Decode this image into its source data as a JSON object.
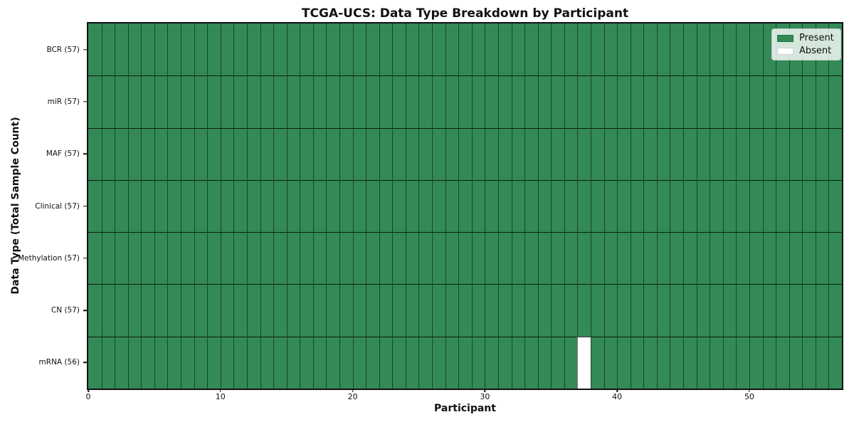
{
  "chart_data": {
    "type": "heatmap",
    "title": "TCGA-UCS: Data Type Breakdown by Participant",
    "xlabel": "Participant",
    "ylabel": "Data Type (Total Sample Count)",
    "n_participants": 57,
    "xlim": [
      0,
      57
    ],
    "x_ticks": [
      0,
      10,
      20,
      30,
      40,
      50
    ],
    "rows": [
      {
        "label": "BCR (57)",
        "present_count": 57,
        "absent_participants": []
      },
      {
        "label": "miR (57)",
        "present_count": 57,
        "absent_participants": []
      },
      {
        "label": "MAF (57)",
        "present_count": 57,
        "absent_participants": []
      },
      {
        "label": "Clinical (57)",
        "present_count": 57,
        "absent_participants": []
      },
      {
        "label": "Methylation (57)",
        "present_count": 57,
        "absent_participants": []
      },
      {
        "label": "CN (57)",
        "present_count": 57,
        "absent_participants": []
      },
      {
        "label": "mRNA (56)",
        "present_count": 56,
        "absent_participants": [
          37
        ]
      }
    ],
    "legend": [
      {
        "label": "Present",
        "color": "#338a57"
      },
      {
        "label": "Absent",
        "color": "#ffffff"
      }
    ],
    "colors": {
      "present": "#338a57",
      "absent": "#ffffff",
      "grid_vertical": "rgba(0,0,0,0.50)",
      "grid_horizontal": "rgba(0,0,0,0.78)",
      "spine": "#111111"
    },
    "legend_position": "upper right",
    "grid": "cell-borders"
  }
}
